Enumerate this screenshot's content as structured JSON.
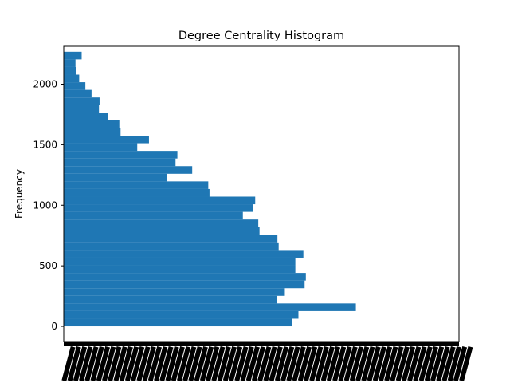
{
  "chart_data": {
    "type": "bar",
    "orientation": "horizontal",
    "title": "Degree Centrality Histogram",
    "xlabel": "",
    "ylabel": "Frequency",
    "ylim": [
      -125,
      2313
    ],
    "yticks": [
      0,
      500,
      1000,
      1500,
      2000
    ],
    "ytick_labels": [
      "0",
      "500",
      "1000",
      "1500",
      "2000"
    ],
    "xtick_label_note": "x tick labels are dense and illegible in the source",
    "bar_color": "#1f77b4",
    "bars": [
      {
        "y": 0,
        "value": 370
      },
      {
        "y": 63,
        "value": 380
      },
      {
        "y": 126,
        "value": 473
      },
      {
        "y": 189,
        "value": 345
      },
      {
        "y": 252,
        "value": 358
      },
      {
        "y": 315,
        "value": 390
      },
      {
        "y": 378,
        "value": 392
      },
      {
        "y": 441,
        "value": 375
      },
      {
        "y": 504,
        "value": 375
      },
      {
        "y": 567,
        "value": 388
      },
      {
        "y": 630,
        "value": 348
      },
      {
        "y": 693,
        "value": 346
      },
      {
        "y": 756,
        "value": 317
      },
      {
        "y": 819,
        "value": 315
      },
      {
        "y": 882,
        "value": 290
      },
      {
        "y": 945,
        "value": 307
      },
      {
        "y": 1008,
        "value": 310
      },
      {
        "y": 1071,
        "value": 236
      },
      {
        "y": 1134,
        "value": 234
      },
      {
        "y": 1197,
        "value": 167
      },
      {
        "y": 1260,
        "value": 208
      },
      {
        "y": 1323,
        "value": 181
      },
      {
        "y": 1386,
        "value": 184
      },
      {
        "y": 1449,
        "value": 119
      },
      {
        "y": 1512,
        "value": 138
      },
      {
        "y": 1575,
        "value": 92
      },
      {
        "y": 1638,
        "value": 90
      },
      {
        "y": 1701,
        "value": 71
      },
      {
        "y": 1764,
        "value": 57
      },
      {
        "y": 1827,
        "value": 58
      },
      {
        "y": 1890,
        "value": 45
      },
      {
        "y": 1953,
        "value": 35
      },
      {
        "y": 2016,
        "value": 25
      },
      {
        "y": 2079,
        "value": 20
      },
      {
        "y": 2142,
        "value": 19
      },
      {
        "y": 2205,
        "value": 29
      }
    ]
  }
}
